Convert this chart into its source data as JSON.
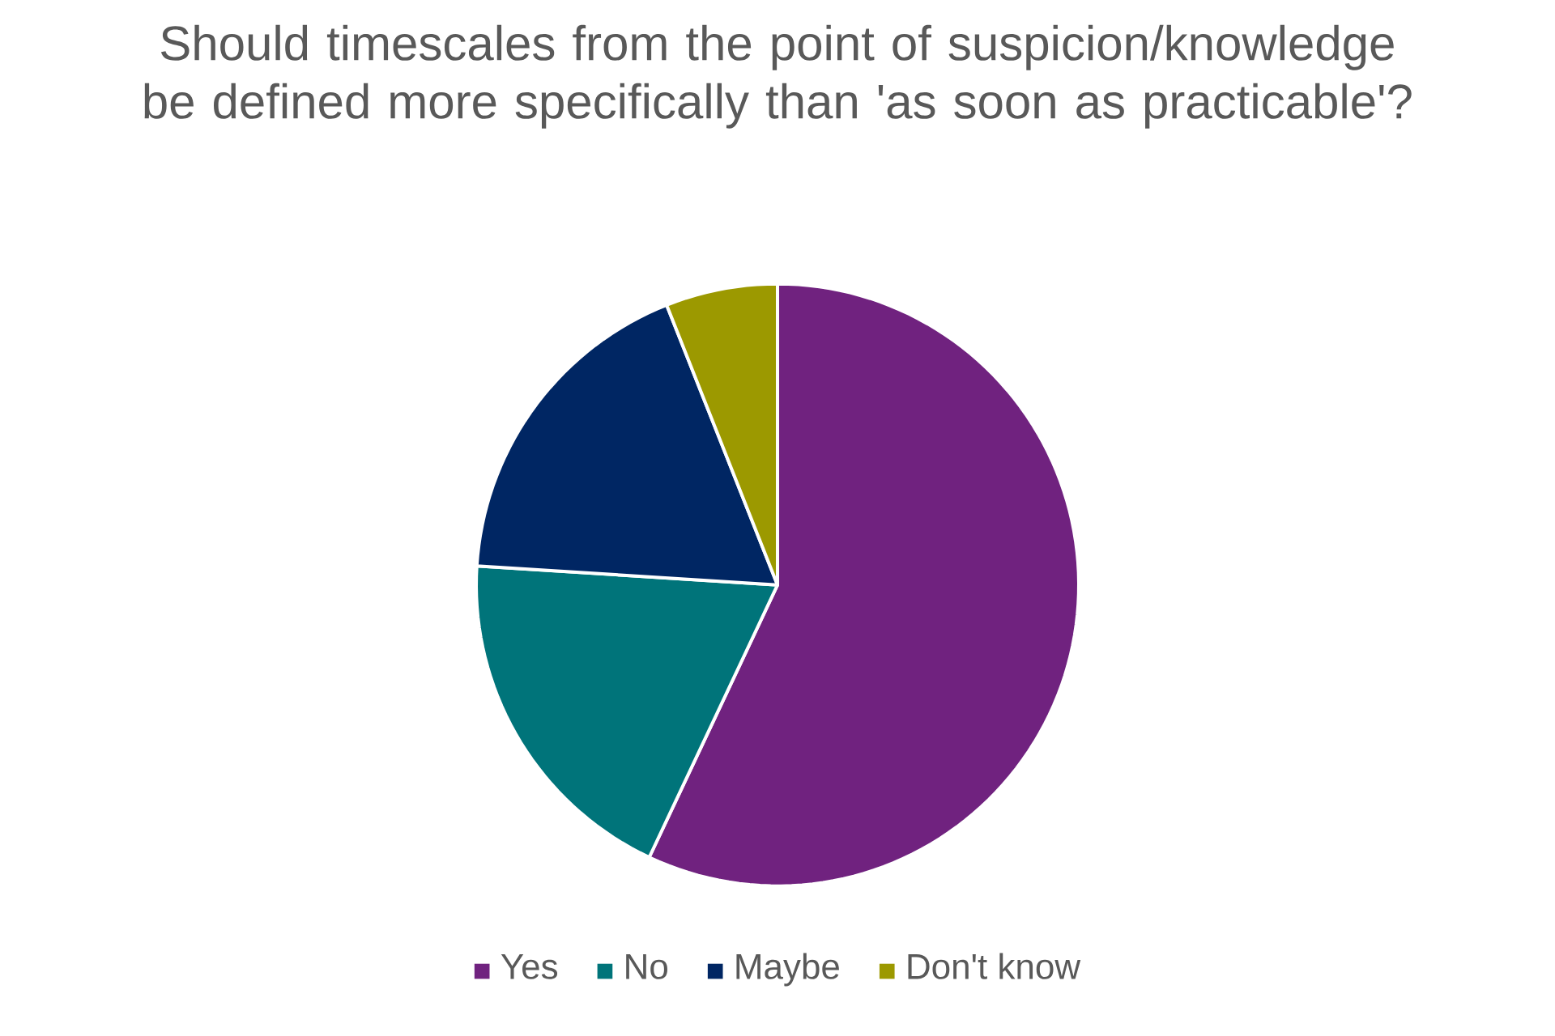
{
  "chart_data": {
    "type": "pie",
    "title": "Should timescales from the point of suspicion/knowledge be defined more specifically than 'as soon as practicable'?",
    "categories": [
      "Yes",
      "No",
      "Maybe",
      "Don't know"
    ],
    "values": [
      57,
      19,
      18,
      6
    ],
    "colors": [
      "#70227f",
      "#00747a",
      "#002663",
      "#9c9900"
    ],
    "legend": "bottom"
  }
}
